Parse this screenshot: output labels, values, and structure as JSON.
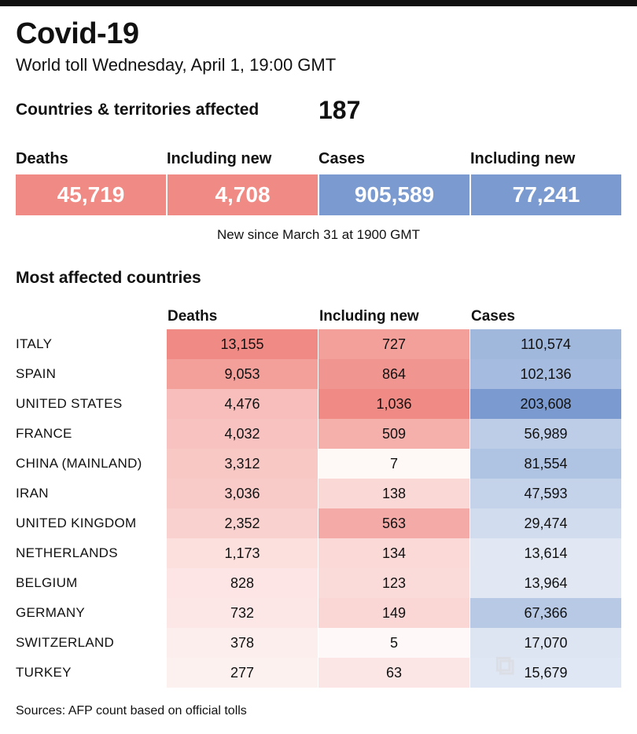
{
  "title": "Covid-19",
  "subtitle": "World toll Wednesday, April 1, 19:00 GMT",
  "affected": {
    "label": "Countries & territories affected",
    "value": "187"
  },
  "kpis": [
    {
      "label": "Deaths",
      "value": "45,719",
      "color": "#f08a84"
    },
    {
      "label": "Including new",
      "value": "4,708",
      "color": "#f08a84"
    },
    {
      "label": "Cases",
      "value": "905,589",
      "color": "#7b9bd0"
    },
    {
      "label": "Including new",
      "value": "77,241",
      "color": "#7b9bd0"
    }
  ],
  "note": "New since  March 31 at 1900 GMT",
  "section_title": "Most affected countries",
  "chart_data": {
    "type": "table",
    "columns": [
      "Deaths",
      "Including new",
      "Cases"
    ],
    "rows": [
      {
        "country": "ITALY",
        "deaths": 13155,
        "new": 727,
        "cases": 110574
      },
      {
        "country": "SPAIN",
        "deaths": 9053,
        "new": 864,
        "cases": 102136
      },
      {
        "country": "UNITED STATES",
        "deaths": 4476,
        "new": 1036,
        "cases": 203608
      },
      {
        "country": "FRANCE",
        "deaths": 4032,
        "new": 509,
        "cases": 56989
      },
      {
        "country": "CHINA (MAINLAND)",
        "deaths": 3312,
        "new": 7,
        "cases": 81554
      },
      {
        "country": "IRAN",
        "deaths": 3036,
        "new": 138,
        "cases": 47593
      },
      {
        "country": "UNITED KINGDOM",
        "deaths": 2352,
        "new": 563,
        "cases": 29474
      },
      {
        "country": "NETHERLANDS",
        "deaths": 1173,
        "new": 134,
        "cases": 13614
      },
      {
        "country": "BELGIUM",
        "deaths": 828,
        "new": 123,
        "cases": 13964
      },
      {
        "country": "GERMANY",
        "deaths": 732,
        "new": 149,
        "cases": 67366
      },
      {
        "country": "SWITZERLAND",
        "deaths": 378,
        "new": 5,
        "cases": 17070
      },
      {
        "country": "TURKEY",
        "deaths": 277,
        "new": 63,
        "cases": 15679
      }
    ],
    "colors": {
      "deaths": "#f08a84",
      "new": "#f08a84",
      "cases": "#7b9bd0"
    }
  },
  "source": "Sources: AFP count based on official tolls"
}
